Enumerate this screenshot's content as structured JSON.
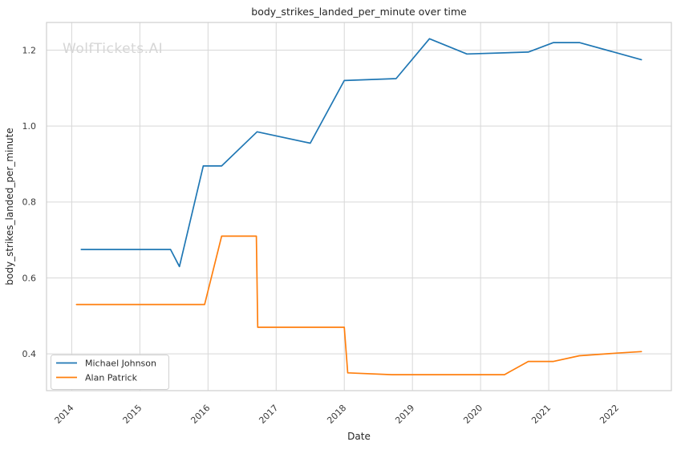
{
  "watermark": "WolfTickets.AI",
  "chart_data": {
    "type": "line",
    "title": "body_strikes_landed_per_minute over time",
    "xlabel": "Date",
    "ylabel": "body_strikes_landed_per_minute",
    "xlim": [
      2013.63,
      2022.8
    ],
    "ylim": [
      0.303,
      1.273
    ],
    "xticks": [
      2014,
      2015,
      2016,
      2017,
      2018,
      2019,
      2020,
      2021,
      2022
    ],
    "yticks": [
      0.4,
      0.6,
      0.8,
      1.0,
      1.2
    ],
    "grid": true,
    "legend_position": "lower-left",
    "colors": {
      "grid": "#d8d8d8",
      "axis_border": "#cfcfcf",
      "text": "#262626",
      "watermark": "#d6d6d6",
      "legend_border": "#d0d0d0"
    },
    "series": [
      {
        "name": "Michael Johnson",
        "color": "#1f77b4",
        "points": [
          [
            2014.14,
            0.675
          ],
          [
            2015.45,
            0.675
          ],
          [
            2015.58,
            0.63
          ],
          [
            2015.93,
            0.895
          ],
          [
            2016.2,
            0.895
          ],
          [
            2016.72,
            0.985
          ],
          [
            2017.5,
            0.955
          ],
          [
            2018.0,
            1.12
          ],
          [
            2018.76,
            1.125
          ],
          [
            2019.25,
            1.23
          ],
          [
            2019.8,
            1.19
          ],
          [
            2020.7,
            1.195
          ],
          [
            2021.07,
            1.22
          ],
          [
            2021.45,
            1.22
          ],
          [
            2022.36,
            1.175
          ]
        ]
      },
      {
        "name": "Alan Patrick",
        "color": "#ff7f0e",
        "points": [
          [
            2014.07,
            0.53
          ],
          [
            2015.95,
            0.53
          ],
          [
            2016.2,
            0.71
          ],
          [
            2016.71,
            0.71
          ],
          [
            2016.73,
            0.47
          ],
          [
            2018.0,
            0.47
          ],
          [
            2018.05,
            0.35
          ],
          [
            2018.7,
            0.345
          ],
          [
            2020.35,
            0.345
          ],
          [
            2020.7,
            0.38
          ],
          [
            2021.07,
            0.38
          ],
          [
            2021.45,
            0.395
          ],
          [
            2022.0,
            0.402
          ],
          [
            2022.36,
            0.406
          ]
        ]
      }
    ]
  }
}
